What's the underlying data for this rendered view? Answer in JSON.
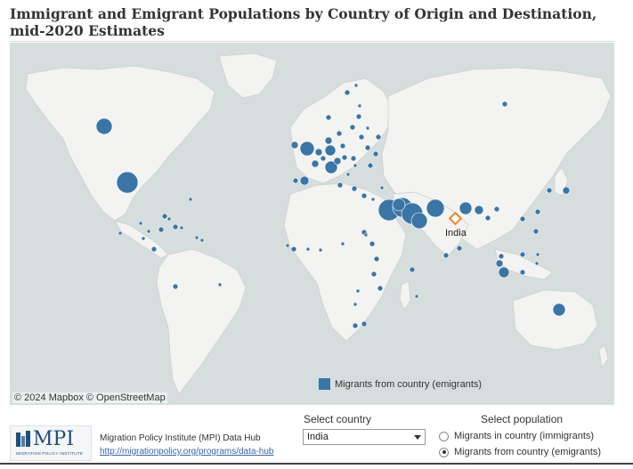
{
  "title": "Immigrant and Emigrant Populations by Country of Origin and Destination, mid-2020 Estimates",
  "map": {
    "attribution": "© 2024 Mapbox  © OpenStreetMap",
    "legend_label": "Migrants from country (emigrants)",
    "selected_country_label": "India",
    "bubble_color": "#3a75a6",
    "selected_marker_color": "#e8862a",
    "water_color": "#d6dedd",
    "land_color": "#f3f3f1"
  },
  "footer": {
    "logo_text": "MPI",
    "logo_subtext": "MIGRATION POLICY INSTITUTE",
    "org_name": "Migration Policy Institute (MPI) Data Hub",
    "org_link": "http://migrationpolicy.org/programs/data-hub"
  },
  "controls": {
    "country_label": "Select country",
    "country_value": "India",
    "population_label": "Select population",
    "population_options": [
      {
        "label": "Migrants in country (immigrants)",
        "checked": false
      },
      {
        "label": "Migrants from country (emigrants)",
        "checked": true
      }
    ]
  }
}
